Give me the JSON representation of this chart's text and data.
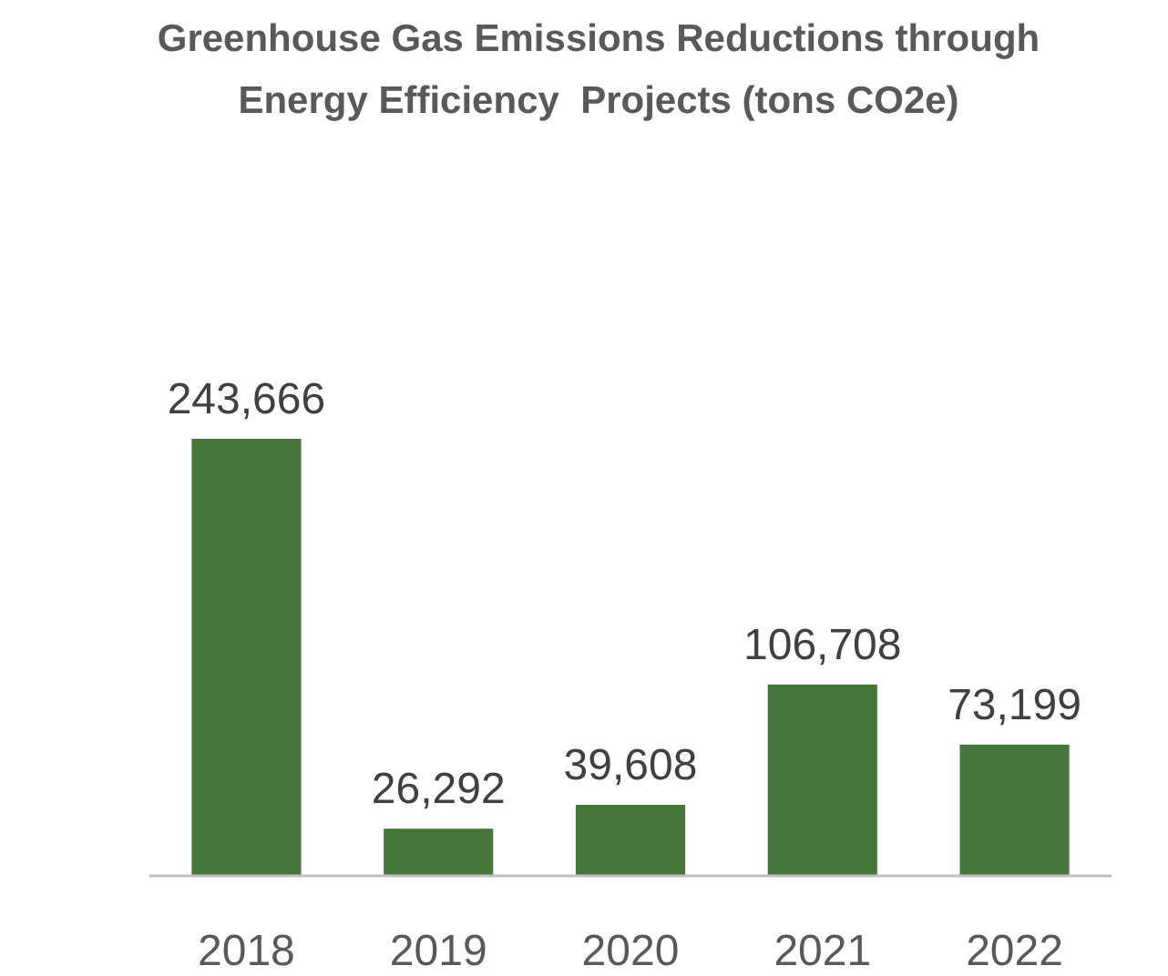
{
  "chart_data": {
    "type": "bar",
    "title": "Greenhouse Gas Emissions Reductions through Energy Efficiency  Projects (tons CO2e)",
    "categories": [
      "2018",
      "2019",
      "2020",
      "2021",
      "2022"
    ],
    "values": [
      243666,
      26292,
      39608,
      106708,
      73199
    ],
    "value_labels": [
      "243,666",
      "26,292",
      "39,608",
      "106,708",
      "73,199"
    ],
    "color": "#47763b"
  }
}
